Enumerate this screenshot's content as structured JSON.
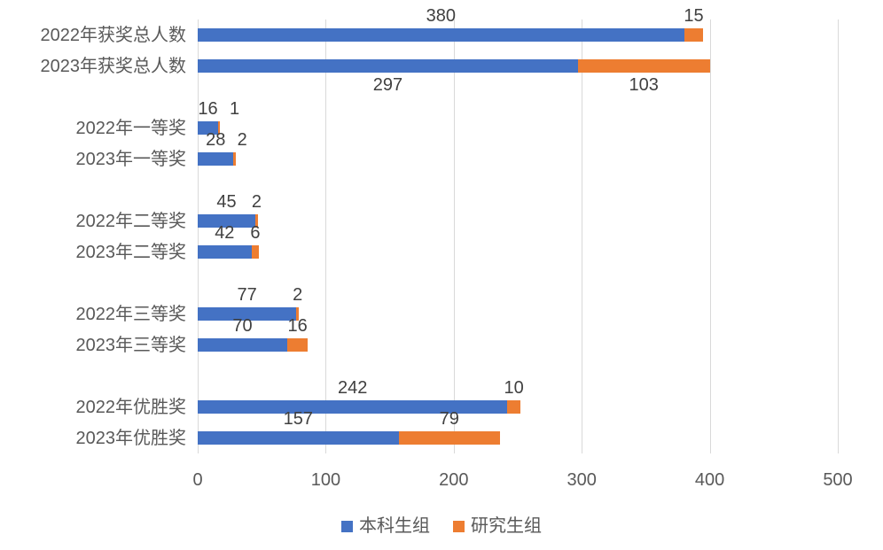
{
  "chart_data": {
    "type": "bar",
    "orientation": "horizontal",
    "stacked": true,
    "title": "",
    "xlabel": "",
    "ylabel": "",
    "xlim": [
      0,
      500
    ],
    "x_ticks": [
      0,
      100,
      200,
      300,
      400,
      500
    ],
    "grid": true,
    "legend_position": "bottom",
    "categories": [
      "2022年获奖总人数",
      "2023年获奖总人数",
      "2022年一等奖",
      "2023年一等奖",
      "2022年二等奖",
      "2023年二等奖",
      "2022年三等奖",
      "2023年三等奖",
      "2022年优胜奖",
      "2023年优胜奖"
    ],
    "series": [
      {
        "name": "本科生组",
        "color": "#4472C4",
        "values": [
          380,
          297,
          16,
          28,
          45,
          42,
          77,
          70,
          242,
          157
        ]
      },
      {
        "name": "研究生组",
        "color": "#ED7D31",
        "values": [
          15,
          103,
          1,
          2,
          2,
          6,
          2,
          16,
          10,
          79
        ]
      }
    ],
    "data_label_position": [
      "above",
      "below",
      "above",
      "above",
      "above",
      "above",
      "above",
      "above",
      "above",
      "above"
    ]
  },
  "colors": {
    "bar_blue": "#4472C4",
    "bar_orange": "#ED7D31",
    "gridline": "#d9d9d9",
    "axis_text": "#595959",
    "data_label_text": "#404040"
  }
}
